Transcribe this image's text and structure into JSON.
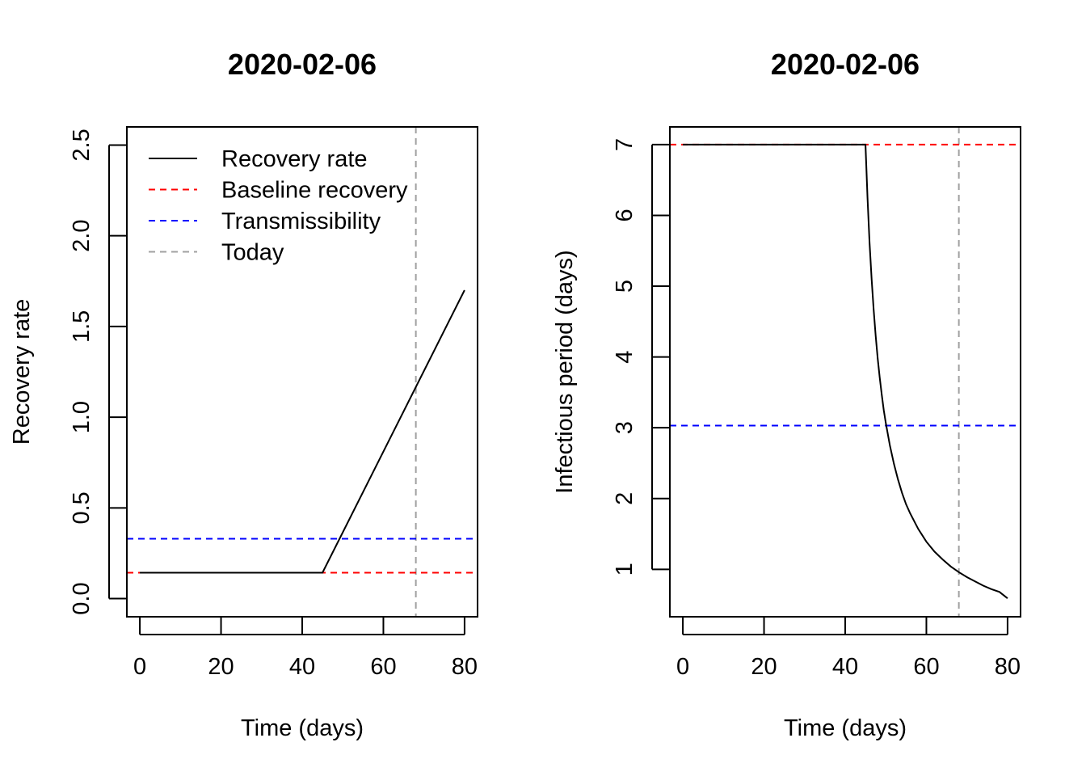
{
  "chart_data": [
    {
      "type": "line",
      "title": "2020-02-06",
      "xlabel": "Time (days)",
      "ylabel": "Recovery rate",
      "xlim": [
        -3.2,
        83.2
      ],
      "ylim": [
        -0.1,
        2.6
      ],
      "xticks": [
        0,
        20,
        40,
        60,
        80
      ],
      "xtick_labels": [
        "0",
        "20",
        "40",
        "60",
        "80"
      ],
      "yticks": [
        0.0,
        0.5,
        1.0,
        1.5,
        2.0,
        2.5
      ],
      "ytick_labels": [
        "0.0",
        "0.5",
        "1.0",
        "1.5",
        "2.0",
        "2.5"
      ],
      "series": [
        {
          "name": "Recovery rate",
          "style": "solid",
          "color": "#000000",
          "x": [
            0,
            45,
            80
          ],
          "y": [
            0.143,
            0.143,
            1.7
          ]
        }
      ],
      "hlines": [
        {
          "name": "Baseline recovery",
          "value": 0.143,
          "color": "#ff0000",
          "style": "dashed"
        },
        {
          "name": "Transmissibility",
          "value": 0.33,
          "color": "#0000ff",
          "style": "dashed"
        }
      ],
      "vlines": [
        {
          "name": "Today",
          "value": 68,
          "color": "#a0a0a0",
          "style": "dashed"
        }
      ],
      "legend": {
        "position": "top-left",
        "entries": [
          {
            "label": "Recovery rate",
            "color": "#000000",
            "style": "solid"
          },
          {
            "label": "Baseline recovery",
            "color": "#ff0000",
            "style": "dashed"
          },
          {
            "label": "Transmissibility",
            "color": "#0000ff",
            "style": "dashed"
          },
          {
            "label": "Today",
            "color": "#a0a0a0",
            "style": "dashed"
          }
        ]
      },
      "grid": false
    },
    {
      "type": "line",
      "title": "2020-02-06",
      "xlabel": "Time (days)",
      "ylabel": "Infectious period (days)",
      "xlim": [
        -3.2,
        83.2
      ],
      "ylim": [
        0.33,
        7.25
      ],
      "xticks": [
        0,
        20,
        40,
        60,
        80
      ],
      "xtick_labels": [
        "0",
        "20",
        "40",
        "60",
        "80"
      ],
      "yticks": [
        1,
        2,
        3,
        4,
        5,
        6,
        7
      ],
      "ytick_labels": [
        "1",
        "2",
        "3",
        "4",
        "5",
        "6",
        "7"
      ],
      "series": [
        {
          "name": "Infectious period",
          "style": "solid",
          "color": "#000000",
          "x": [
            0,
            45,
            45.5,
            46,
            46.5,
            47,
            47.5,
            48,
            48.5,
            49,
            49.5,
            50,
            51,
            52,
            53,
            54,
            55,
            56,
            58,
            60,
            62,
            64,
            66,
            68,
            70,
            72,
            74,
            76,
            78,
            80
          ],
          "y": [
            7.0,
            7.0,
            6.25,
            5.62,
            5.1,
            4.67,
            4.3,
            3.98,
            3.71,
            3.47,
            3.25,
            3.07,
            2.75,
            2.49,
            2.27,
            2.08,
            1.92,
            1.79,
            1.57,
            1.39,
            1.25,
            1.14,
            1.04,
            0.96,
            0.89,
            0.83,
            0.77,
            0.72,
            0.68,
            0.59
          ]
        }
      ],
      "hlines": [
        {
          "name": "Baseline recovery",
          "value": 7.0,
          "color": "#ff0000",
          "style": "dashed"
        },
        {
          "name": "Transmissibility",
          "value": 3.03,
          "color": "#0000ff",
          "style": "dashed"
        }
      ],
      "vlines": [
        {
          "name": "Today",
          "value": 68,
          "color": "#a0a0a0",
          "style": "dashed"
        }
      ],
      "grid": false
    }
  ]
}
